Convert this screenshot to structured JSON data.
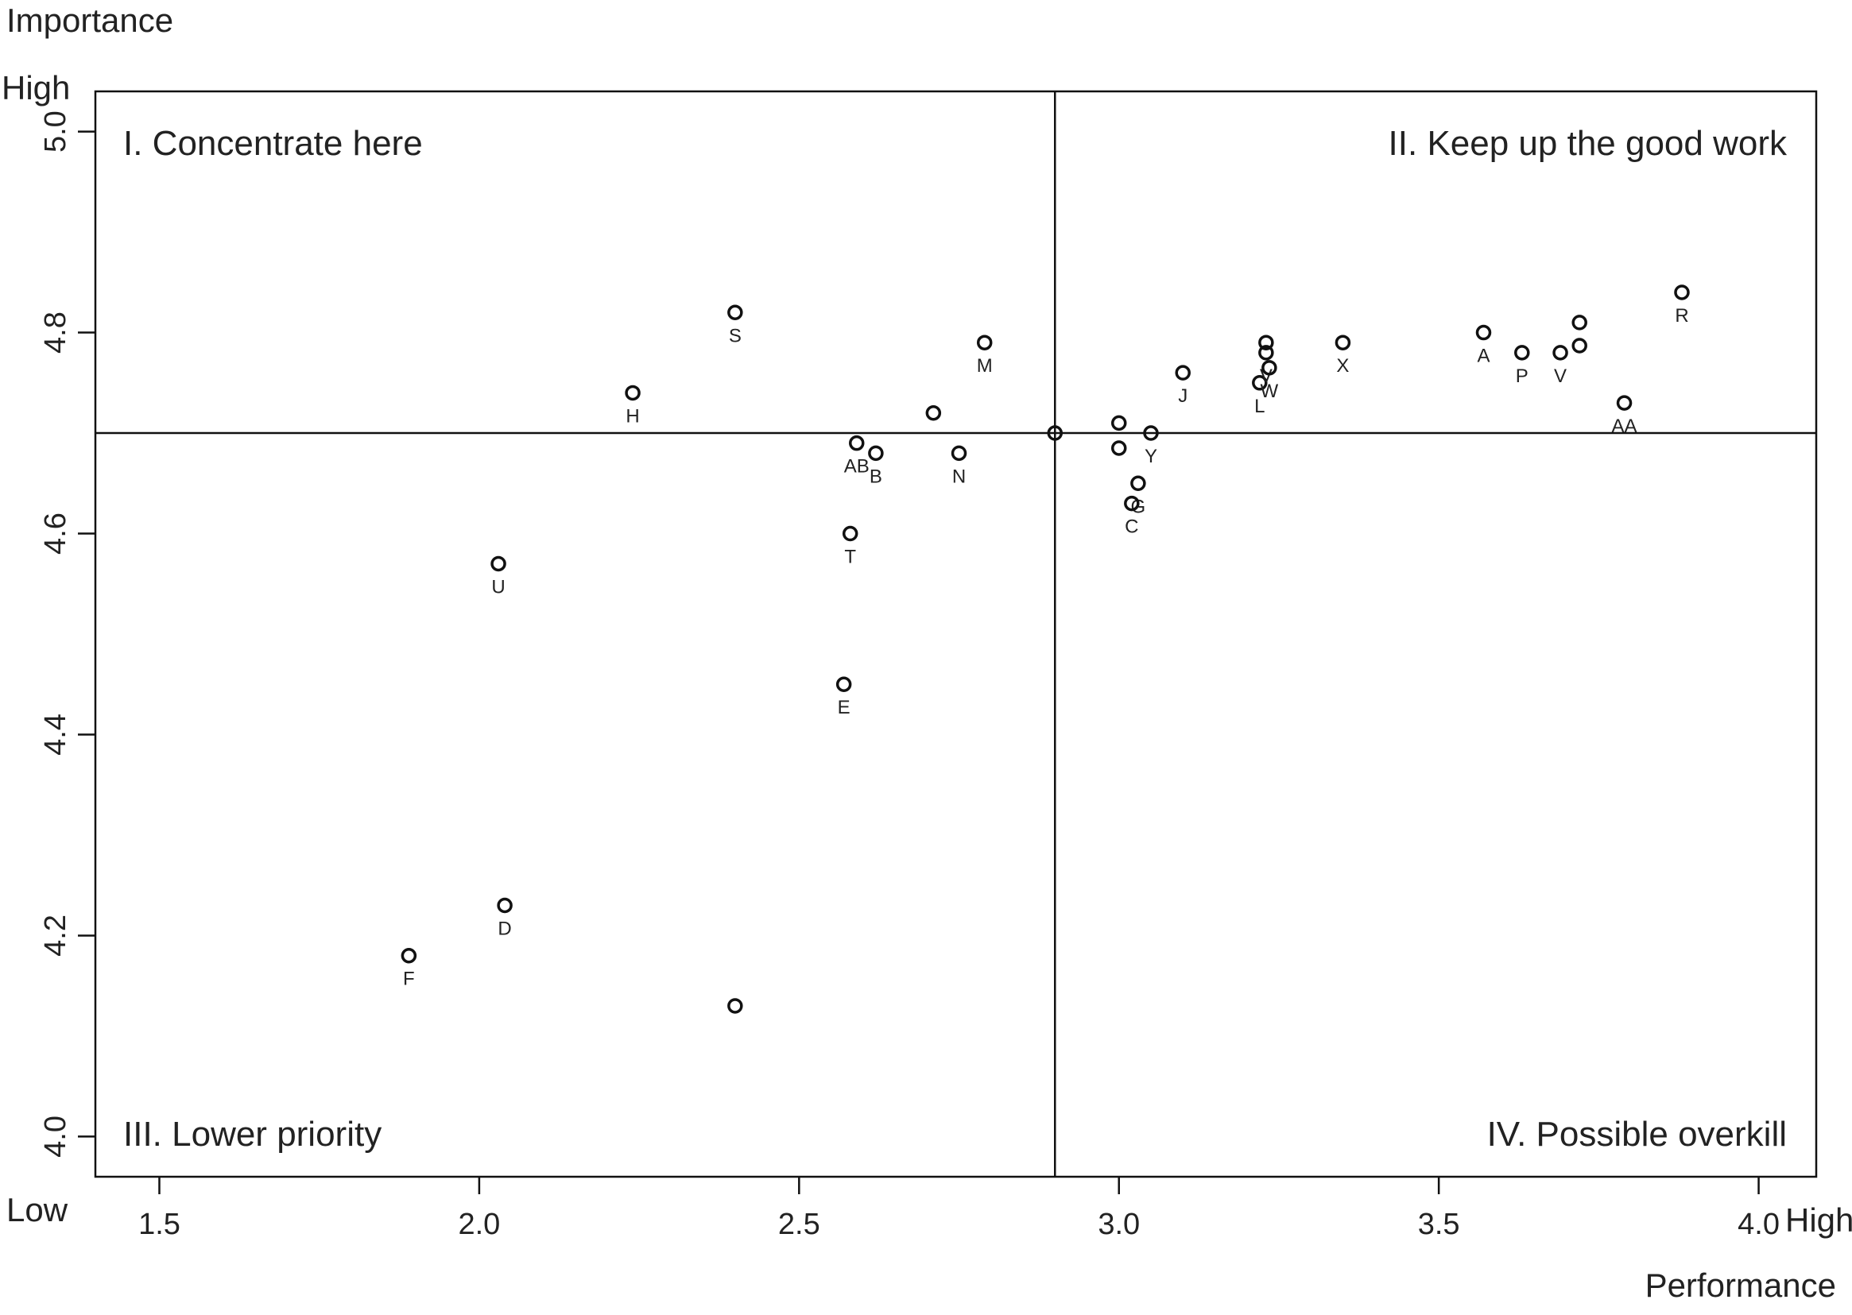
{
  "chart_data": {
    "type": "scatter",
    "ylabel": "Importance",
    "xlabel": "Performance",
    "y_high_label": "High",
    "y_low_label": "Low",
    "x_high_label": "High",
    "xlim": [
      1.4,
      4.09
    ],
    "ylim": [
      3.96,
      5.04
    ],
    "x_ticks": [
      "1.5",
      "2.0",
      "2.5",
      "3.0",
      "3.5",
      "4.0"
    ],
    "y_ticks": [
      "4.0",
      "4.2",
      "4.4",
      "4.6",
      "4.8",
      "5.0"
    ],
    "x_ref": 2.9,
    "y_ref": 4.7,
    "grid": false,
    "quadrants": {
      "q1": "I. Concentrate here",
      "q2": "II. Keep up the good work",
      "q3": "III. Lower priority",
      "q4": "IV. Possible overkill"
    },
    "points": [
      {
        "label": "S",
        "x": 2.4,
        "y": 4.82
      },
      {
        "label": "H",
        "x": 2.24,
        "y": 4.74
      },
      {
        "label": "M",
        "x": 2.79,
        "y": 4.79
      },
      {
        "label": "",
        "x": 2.71,
        "y": 4.72
      },
      {
        "label": "AB",
        "x": 2.59,
        "y": 4.69
      },
      {
        "label": "B",
        "x": 2.62,
        "y": 4.68
      },
      {
        "label": "N",
        "x": 2.75,
        "y": 4.68
      },
      {
        "label": "T",
        "x": 2.58,
        "y": 4.6
      },
      {
        "label": "U",
        "x": 2.03,
        "y": 4.57
      },
      {
        "label": "E",
        "x": 2.57,
        "y": 4.45
      },
      {
        "label": "D",
        "x": 2.04,
        "y": 4.23
      },
      {
        "label": "F",
        "x": 1.89,
        "y": 4.18
      },
      {
        "label": "",
        "x": 2.4,
        "y": 4.13
      },
      {
        "label": "",
        "x": 2.9,
        "y": 4.7
      },
      {
        "label": "",
        "x": 3.0,
        "y": 4.71
      },
      {
        "label": "",
        "x": 3.0,
        "y": 4.685
      },
      {
        "label": "Y",
        "x": 3.05,
        "y": 4.7
      },
      {
        "label": "G",
        "x": 3.03,
        "y": 4.65
      },
      {
        "label": "C",
        "x": 3.02,
        "y": 4.63
      },
      {
        "label": "J",
        "x": 3.1,
        "y": 4.76
      },
      {
        "label": "L",
        "x": 3.22,
        "y": 4.75
      },
      {
        "label": "",
        "x": 3.23,
        "y": 4.79
      },
      {
        "label": "V",
        "x": 3.23,
        "y": 4.78
      },
      {
        "label": "W",
        "x": 3.235,
        "y": 4.765
      },
      {
        "label": "X",
        "x": 3.35,
        "y": 4.79
      },
      {
        "label": "A",
        "x": 3.57,
        "y": 4.8
      },
      {
        "label": "P",
        "x": 3.63,
        "y": 4.78
      },
      {
        "label": "V",
        "x": 3.69,
        "y": 4.78
      },
      {
        "label": "",
        "x": 3.72,
        "y": 4.81
      },
      {
        "label": "",
        "x": 3.72,
        "y": 4.787
      },
      {
        "label": "AA",
        "x": 3.79,
        "y": 4.73
      },
      {
        "label": "R",
        "x": 3.88,
        "y": 4.84
      }
    ]
  }
}
